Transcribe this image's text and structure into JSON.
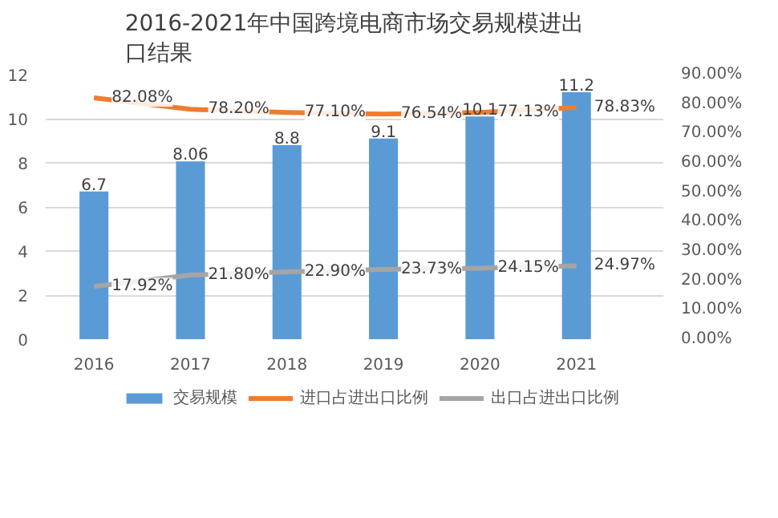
{
  "chart_data": {
    "type": "bar",
    "title": "2016-2021年中国跨境电商市场交易规模进出口结果",
    "categories": [
      "2016",
      "2017",
      "2018",
      "2019",
      "2020",
      "2021"
    ],
    "series": [
      {
        "name": "交易规模",
        "color": "#5b9bd5",
        "values": [
          6.7,
          8.06,
          8.8,
          9.1,
          10.1,
          11.2
        ],
        "value_labels": [
          "6.7",
          "8.06",
          "8.8",
          "9.1",
          "10.1",
          "11.2"
        ]
      },
      {
        "name": "进口占进出口比例",
        "type": "line",
        "axis": "y2",
        "color": "#ed7d31",
        "values": [
          82.08,
          78.2,
          77.1,
          76.54,
          77.13,
          78.83
        ],
        "value_labels": [
          "82.08%",
          "78.20%",
          "77.10%",
          "76.54%",
          "77.13%",
          "78.83%"
        ]
      },
      {
        "name": "出口占进出口比例",
        "type": "line",
        "axis": "y2",
        "color": "#a5a5a5",
        "values": [
          17.92,
          21.8,
          22.9,
          23.73,
          24.15,
          24.97
        ],
        "value_labels": [
          "17.92%",
          "21.80%",
          "22.90%",
          "23.73%",
          "24.15%",
          "24.97%"
        ]
      }
    ],
    "ylim": [
      0,
      12
    ],
    "yticks": [
      0,
      2,
      4,
      6,
      8,
      10,
      12
    ],
    "y2lim": [
      0,
      90
    ],
    "y2ticks": [
      {
        "value": 0,
        "label": "0.00%"
      },
      {
        "value": 10,
        "label": "10.00%"
      },
      {
        "value": 20,
        "label": "20.00%"
      },
      {
        "value": 30,
        "label": "30.00%"
      },
      {
        "value": 40,
        "label": "40.00%"
      },
      {
        "value": 50,
        "label": "50.00%"
      },
      {
        "value": 60,
        "label": "60.00%"
      },
      {
        "value": 70,
        "label": "70.00%"
      },
      {
        "value": 80,
        "label": "80.00%"
      },
      {
        "value": 90,
        "label": "90.00%"
      }
    ],
    "grid": "y",
    "legend": "bottom"
  }
}
